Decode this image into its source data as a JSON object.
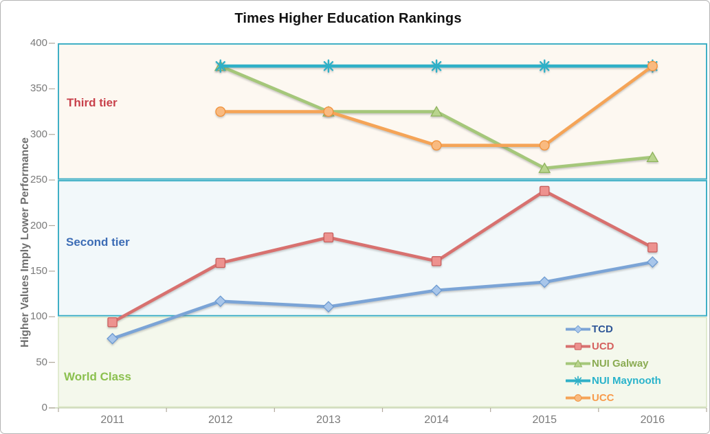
{
  "chart_data": {
    "type": "line",
    "title": "Times Higher Education Rankings",
    "ylabel": "Higher Values Imply Lower Performance",
    "xlabel": "",
    "categories": [
      "2011",
      "2012",
      "2013",
      "2014",
      "2015",
      "2016"
    ],
    "y_ticks": [
      "0",
      "50",
      "100",
      "150",
      "200",
      "250",
      "300",
      "350",
      "400"
    ],
    "ylim": [
      0,
      400
    ],
    "grid": "off",
    "legend_position": "inside-bottom-right",
    "series": [
      {
        "name": "TCD",
        "marker": "diamond",
        "line_color": "#7ba4d6",
        "marker_fill": "#a8c6ea",
        "marker_stroke": "#6d9bd2",
        "label_color": "#2e5697",
        "values": [
          76,
          117,
          111,
          129,
          138,
          160
        ]
      },
      {
        "name": "UCD",
        "marker": "square",
        "line_color": "#d8716f",
        "marker_fill": "#ed928f",
        "marker_stroke": "#c85f5d",
        "label_color": "#d5605e",
        "values": [
          94,
          159,
          187,
          161,
          238,
          176
        ]
      },
      {
        "name": "NUI Galway",
        "marker": "triangle",
        "line_color": "#a5c77a",
        "marker_fill": "#b9d48d",
        "marker_stroke": "#8eb35c",
        "label_color": "#8aab52",
        "values": [
          null,
          375,
          325,
          325,
          263,
          275
        ]
      },
      {
        "name": "NUI Maynooth",
        "marker": "asterisk",
        "line_color": "#2fb0c7",
        "marker_fill": "#2fb0c7",
        "marker_stroke": "#2fb0c7",
        "label_color": "#29b3cb",
        "values": [
          null,
          375,
          375,
          375,
          375,
          375
        ]
      },
      {
        "name": "UCC",
        "marker": "circle",
        "line_color": "#f5a457",
        "marker_fill": "#f9ba80",
        "marker_stroke": "#f0913a",
        "label_color": "#f89b4c",
        "values": [
          null,
          325,
          325,
          288,
          288,
          375
        ]
      }
    ],
    "bands": [
      {
        "label": "Third tier",
        "from": 250,
        "to": 400,
        "fill": "#fdf8f1",
        "border": "#3fafc5",
        "label_color": "#c8414b"
      },
      {
        "label": "Second tier",
        "from": 100,
        "to": 250,
        "fill": "#f2f8fa",
        "border": "#3fafc5",
        "label_color": "#3c6cb5"
      },
      {
        "label": "World Class",
        "from": 0,
        "to": 100,
        "fill": "#f4f8ec",
        "border": "#d9e6c3",
        "label_color": "#8bc04f"
      }
    ],
    "axis": {
      "line_color": "#c9d5b5",
      "tick_color": "#b1a99d",
      "tick_label_color": "#7a7a7a",
      "title_color": "#111111",
      "ylabel_color": "#6e6e6e"
    }
  }
}
